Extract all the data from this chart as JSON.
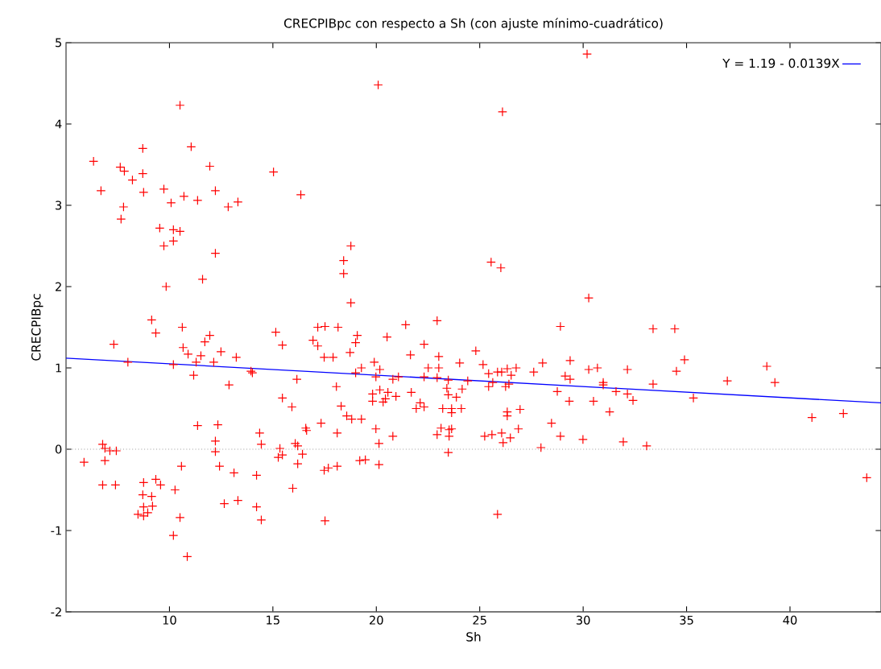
{
  "chart_data": {
    "type": "scatter",
    "title": "CRECPIBpc con respecto a Sh (con ajuste mínimo-cuadrático)",
    "xlabel": "Sh",
    "ylabel": "CRECPIBpc",
    "xlim": [
      5,
      44.4
    ],
    "ylim": [
      -2,
      5
    ],
    "xticks": [
      10,
      15,
      20,
      25,
      30,
      35,
      40
    ],
    "yticks": [
      -2,
      -1,
      0,
      1,
      2,
      3,
      4,
      5
    ],
    "grid": false,
    "legend": "top right",
    "ref_lines": [
      {
        "axis": "y",
        "value": 0,
        "color": "#a0a0a0",
        "line_style": "dotted"
      }
    ],
    "series": [
      {
        "color": "#ff0000",
        "marker": "cross",
        "x": [
          5.87,
          6.77,
          6.88,
          7.12,
          7.43,
          6.88,
          6.77,
          7.39,
          8.75,
          9.34,
          9.57,
          10.27,
          8.71,
          9.14,
          8.75,
          9.18,
          8.48,
          8.75,
          8.95,
          10.51,
          10.19,
          10.86,
          10.58,
          11.36,
          12.34,
          12.22,
          12.22,
          12.42,
          13.12,
          12.65,
          13.31,
          14.21,
          14.21,
          14.44,
          14.36,
          14.44,
          15.34,
          15.46,
          15.26,
          16.08,
          16.2,
          16.43,
          16.2,
          15.96,
          16.59,
          16.63,
          17.33,
          17.48,
          17.68,
          17.52,
          18.11,
          18.11,
          11.17,
          12.88,
          15.46,
          15.92,
          16.16,
          18.07,
          7.99,
          7.31,
          10.19,
          13.94,
          14.01,
          10.62,
          9.34,
          10.66,
          10.9,
          11.52,
          11.29,
          11.71,
          11.95,
          12.14,
          12.49,
          13.23,
          15.14,
          15.46,
          16.94,
          17.17,
          17.17,
          17.52,
          17.48,
          17.91,
          9.14,
          6.33,
          6.69,
          7.62,
          7.82,
          8.21,
          8.71,
          8.71,
          8.75,
          7.78,
          7.66,
          9.73,
          10.08,
          10.7,
          11.36,
          9.53,
          10.19,
          10.51,
          10.19,
          9.73,
          9.84,
          10.51,
          11.05,
          11.95,
          12.22,
          12.84,
          13.31,
          15.03,
          16.35,
          12.22,
          11.6,
          20.09,
          26.1,
          30.19,
          18.77,
          18.42,
          18.42,
          18.77,
          25.55,
          26.02,
          30.27,
          18.15,
          21.42,
          22.94,
          28.9,
          19.08,
          19.0,
          20.52,
          22.31,
          21.65,
          18.73,
          18.3,
          18.57,
          18.81,
          19.28,
          19.0,
          19.28,
          19.9,
          20.17,
          19.98,
          20.8,
          21.07,
          19.82,
          19.82,
          20.17,
          20.56,
          20.95,
          20.33,
          20.44,
          21.69,
          22.12,
          21.93,
          22.31,
          22.31,
          22.51,
          23.02,
          23.02,
          22.94,
          23.48,
          23.41,
          23.48,
          23.87,
          24.15,
          24.03,
          24.42,
          24.81,
          25.16,
          25.43,
          25.43,
          25.63,
          25.86,
          26.06,
          26.33,
          26.52,
          26.76,
          26.25,
          26.41,
          23.21,
          23.64,
          24.11,
          23.64,
          23.13,
          22.94,
          23.52,
          23.52,
          23.64,
          23.48,
          25.24,
          25.59,
          26.06,
          26.13,
          26.48,
          26.33,
          26.33,
          26.95,
          26.87,
          25.86,
          19.98,
          20.13,
          20.8,
          19.2,
          19.47,
          20.13,
          27.61,
          28.04,
          29.37,
          29.13,
          29.37,
          28.75,
          29.33,
          28.47,
          28.9,
          29.99,
          27.96,
          30.27,
          30.69,
          30.97,
          30.97,
          30.5,
          31.28,
          33.38,
          34.43,
          34.9,
          34.51,
          32.14,
          33.38,
          31.59,
          32.14,
          32.41,
          31.94,
          33.07,
          35.33,
          36.97,
          38.88,
          39.27,
          41.06,
          42.58,
          43.71
        ],
        "values": [
          -0.16,
          0.06,
          0.01,
          -0.02,
          -0.02,
          -0.14,
          -0.44,
          -0.44,
          -0.41,
          -0.37,
          -0.44,
          -0.5,
          -0.56,
          -0.58,
          -0.71,
          -0.7,
          -0.8,
          -0.82,
          -0.78,
          -0.84,
          -1.06,
          -1.32,
          -0.21,
          0.29,
          0.3,
          0.1,
          -0.03,
          -0.21,
          -0.29,
          -0.67,
          -0.63,
          -0.32,
          -0.71,
          -0.87,
          0.2,
          0.06,
          0.01,
          -0.07,
          -0.1,
          0.07,
          0.04,
          -0.06,
          -0.18,
          -0.48,
          0.26,
          0.23,
          0.32,
          -0.26,
          -0.23,
          -0.88,
          0.2,
          -0.21,
          0.91,
          0.79,
          0.63,
          0.52,
          0.86,
          0.77,
          1.07,
          1.29,
          1.04,
          0.96,
          0.94,
          1.5,
          1.43,
          1.25,
          1.17,
          1.15,
          1.07,
          1.32,
          1.4,
          1.07,
          1.2,
          1.13,
          1.44,
          1.28,
          1.34,
          1.27,
          1.5,
          1.51,
          1.13,
          1.13,
          1.59,
          3.54,
          3.18,
          3.47,
          3.42,
          3.31,
          3.7,
          3.39,
          3.16,
          2.98,
          2.83,
          3.2,
          3.03,
          3.11,
          3.06,
          2.72,
          2.7,
          2.68,
          2.56,
          2.5,
          2.0,
          4.23,
          3.72,
          3.48,
          3.18,
          2.98,
          3.04,
          3.41,
          3.13,
          2.41,
          2.09,
          4.48,
          4.15,
          4.86,
          2.5,
          2.32,
          2.16,
          1.8,
          2.3,
          2.23,
          1.86,
          1.5,
          1.53,
          1.58,
          1.51,
          1.4,
          1.31,
          1.38,
          1.29,
          1.16,
          1.19,
          0.53,
          0.41,
          0.37,
          0.37,
          0.94,
          1.0,
          1.07,
          0.98,
          0.89,
          0.86,
          0.89,
          0.68,
          0.59,
          0.73,
          0.7,
          0.65,
          0.58,
          0.62,
          0.7,
          0.57,
          0.5,
          0.52,
          0.89,
          1.0,
          1.14,
          1.0,
          0.88,
          0.85,
          0.75,
          0.67,
          0.64,
          0.74,
          1.06,
          0.84,
          1.21,
          1.04,
          0.93,
          0.77,
          0.82,
          0.95,
          0.95,
          0.99,
          0.91,
          1.0,
          0.77,
          0.8,
          0.5,
          0.5,
          0.5,
          0.45,
          0.26,
          0.18,
          0.24,
          0.16,
          0.25,
          -0.04,
          0.16,
          0.18,
          0.2,
          0.08,
          0.14,
          0.46,
          0.41,
          0.49,
          0.25,
          -0.8,
          0.25,
          0.07,
          0.16,
          -0.14,
          -0.13,
          -0.19,
          0.95,
          1.06,
          1.09,
          0.9,
          0.86,
          0.71,
          0.59,
          0.32,
          0.16,
          0.12,
          0.02,
          0.98,
          1.0,
          0.82,
          0.79,
          0.59,
          0.46,
          1.48,
          1.48,
          1.1,
          0.96,
          0.98,
          0.8,
          0.71,
          0.68,
          0.6,
          0.09,
          0.04,
          0.63,
          0.84,
          1.02,
          0.82,
          0.39,
          0.44,
          -0.35
        ]
      },
      {
        "type": "line",
        "name": "Y = 1.19 - 0.0139X",
        "color": "#0000ff",
        "marker": "none",
        "line_style": "solid",
        "x": [
          5,
          44.4
        ],
        "values": [
          1.12,
          0.57
        ]
      }
    ]
  }
}
